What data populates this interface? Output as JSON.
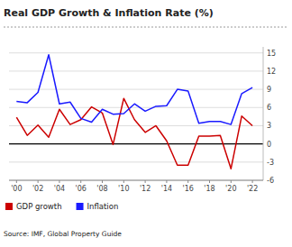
{
  "chart_data": {
    "type": "line",
    "title": "Real GDP Growth & Inflation Rate (%)",
    "annotations": [
      "Source: IMF, Global Property Guide"
    ],
    "x": [
      2000,
      2001,
      2002,
      2003,
      2004,
      2005,
      2006,
      2007,
      2008,
      2009,
      2010,
      2011,
      2012,
      2013,
      2014,
      2015,
      2016,
      2017,
      2018,
      2019,
      2020,
      2021,
      2022
    ],
    "series": [
      {
        "name": "GDP growth",
        "color": "#cc0000",
        "values": [
          4.4,
          1.4,
          3.1,
          1.1,
          5.7,
          3.2,
          4.0,
          6.1,
          5.1,
          -0.1,
          7.5,
          4.0,
          1.9,
          3.0,
          0.5,
          -3.5,
          -3.5,
          1.3,
          1.3,
          1.4,
          -4.1,
          4.6,
          3.0
        ]
      },
      {
        "name": "Inflation",
        "color": "#1a1aff",
        "values": [
          7.0,
          6.8,
          8.5,
          14.7,
          6.6,
          6.9,
          4.2,
          3.6,
          5.7,
          4.9,
          5.0,
          6.6,
          5.4,
          6.2,
          6.3,
          9.0,
          8.7,
          3.4,
          3.7,
          3.7,
          3.2,
          8.3,
          9.3
        ]
      }
    ],
    "xlim": [
      1999.3,
      2023.0
    ],
    "xticks": [
      {
        "value": 2000,
        "label": "'00"
      },
      {
        "value": 2002,
        "label": "'02"
      },
      {
        "value": 2004,
        "label": "'04"
      },
      {
        "value": 2006,
        "label": "'06"
      },
      {
        "value": 2008,
        "label": "'08"
      },
      {
        "value": 2010,
        "label": "'10"
      },
      {
        "value": 2012,
        "label": "'12"
      },
      {
        "value": 2014,
        "label": "'14"
      },
      {
        "value": 2016,
        "label": "'16"
      },
      {
        "value": 2018,
        "label": "'18"
      },
      {
        "value": 2020,
        "label": "'20"
      },
      {
        "value": 2022,
        "label": "'22"
      }
    ],
    "ylim": [
      -6,
      16
    ],
    "yticks": [
      -6,
      -3,
      0,
      3,
      6,
      9,
      12,
      15
    ],
    "grid": true,
    "legend": "bottom"
  }
}
